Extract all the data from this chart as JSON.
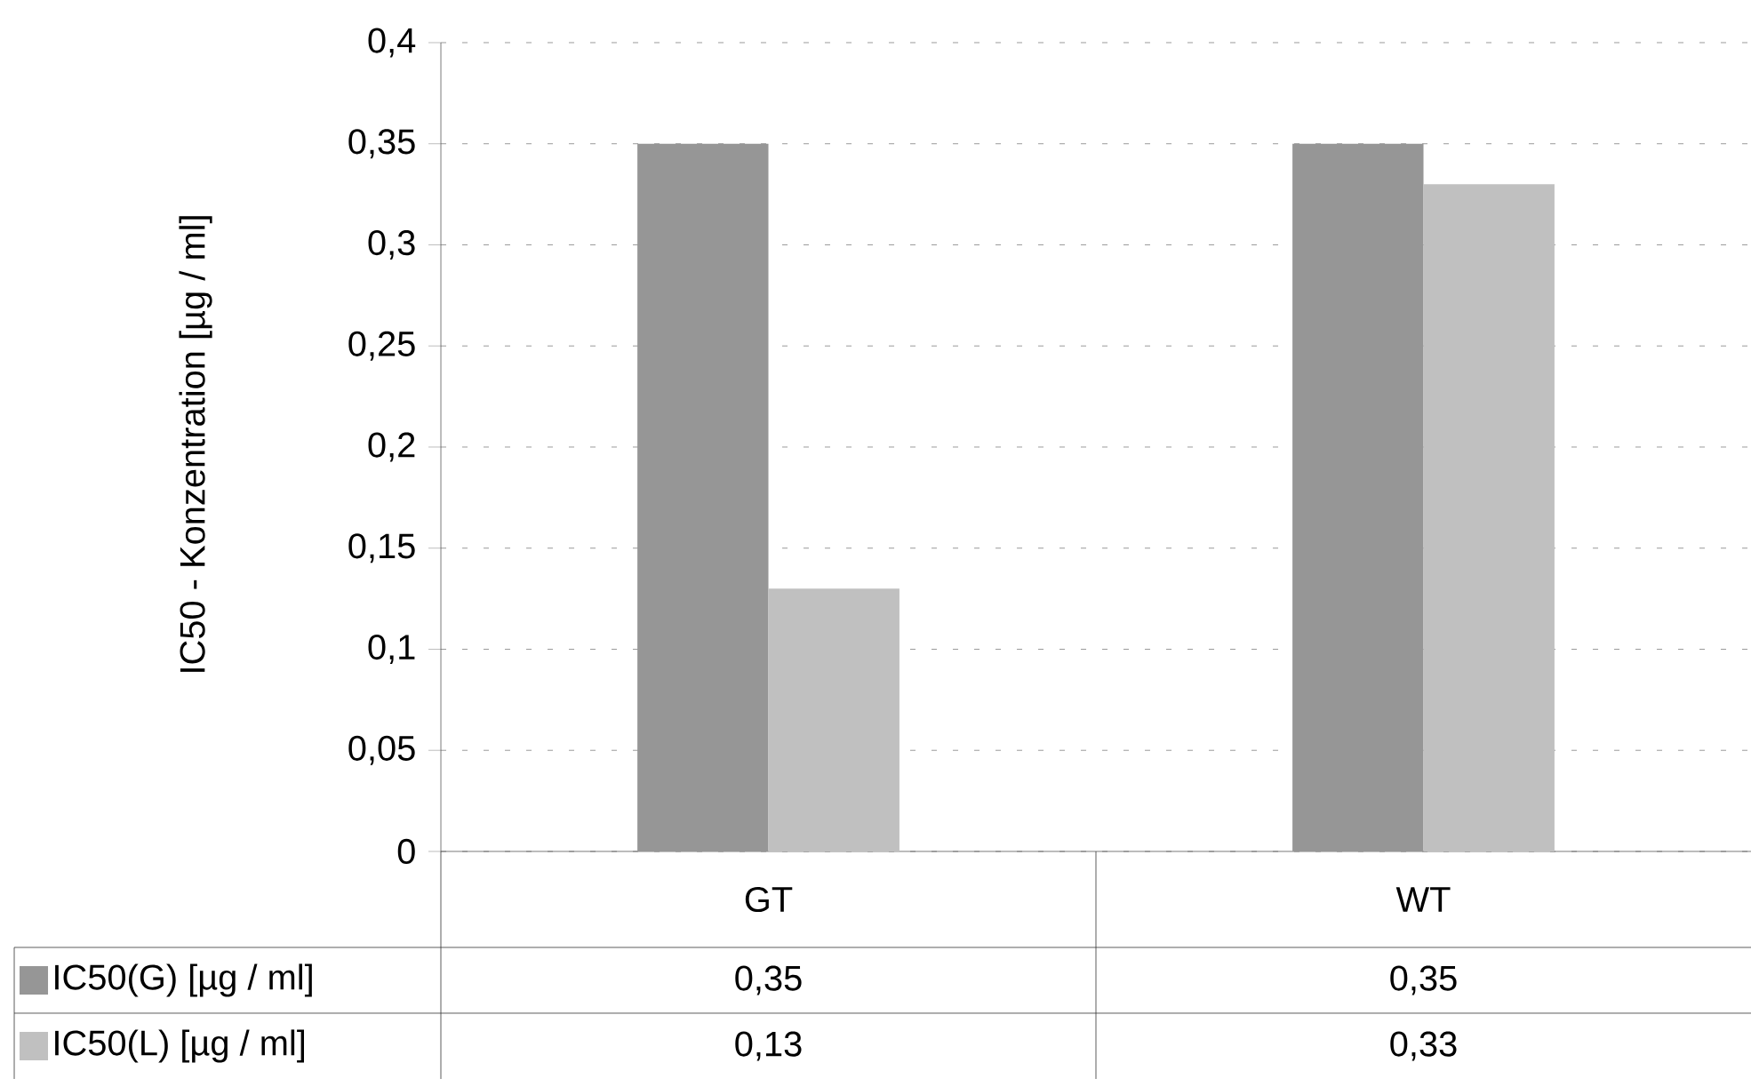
{
  "chart_data": {
    "type": "bar",
    "ylabel": "IC50 - Konzentration [µg / ml]",
    "categories": [
      "GT",
      "WT"
    ],
    "series": [
      {
        "name": "IC50(G) [µg / ml]",
        "color": "#969696",
        "values": [
          0.35,
          0.35
        ],
        "value_labels": [
          "0,35",
          "0,35"
        ]
      },
      {
        "name": "IC50(L)  [µg / ml]",
        "color": "#c0c0c0",
        "values": [
          0.13,
          0.33
        ],
        "value_labels": [
          "0,13",
          "0,33"
        ]
      }
    ],
    "ylim": [
      0,
      0.4
    ],
    "yticks": [
      0,
      {
        "value": 0.05,
        "label": "0,05"
      },
      {
        "value": 0.1,
        "label": "0,1"
      },
      {
        "value": 0.15,
        "label": "0,15"
      },
      {
        "value": 0.2,
        "label": "0,2"
      },
      {
        "value": 0.25,
        "label": "0,25"
      },
      {
        "value": 0.3,
        "label": "0,3"
      },
      {
        "value": 0.35,
        "label": "0,35"
      },
      {
        "value": 0.4,
        "label": "0,4"
      }
    ],
    "grid": "y",
    "legend": "bottom"
  }
}
